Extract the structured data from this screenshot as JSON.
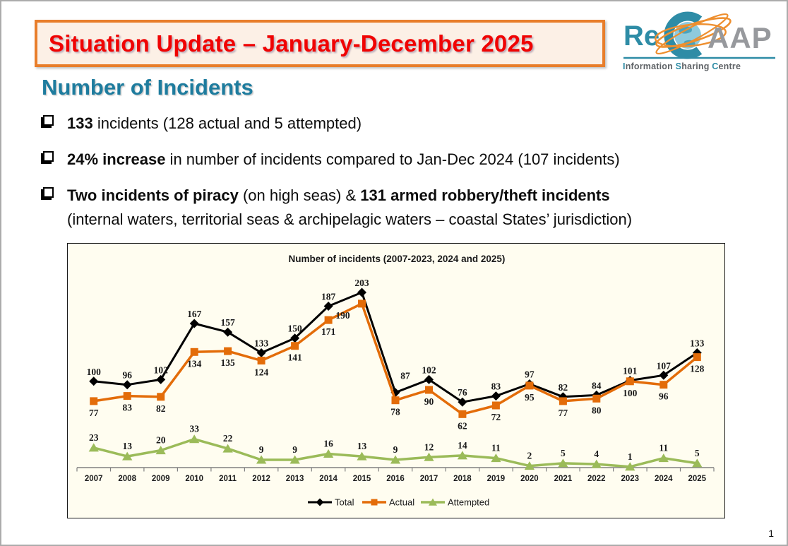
{
  "slide": {
    "page_number": "1",
    "banner": {
      "title": "Situation Update – January-December 2025"
    },
    "logo": {
      "re": "Re",
      "c": "C",
      "aap": "AAP",
      "tagline": [
        {
          "initial": "I",
          "rest": "nformation"
        },
        {
          "initial": "S",
          "rest": "haring"
        },
        {
          "initial": "C",
          "rest": "entre"
        }
      ],
      "teal": "#2e8ca6",
      "gray": "#97999d",
      "orange": "#ee8f2f"
    },
    "heading": "Number of Incidents",
    "bullets": [
      {
        "segments": [
          {
            "text": "133",
            "bold": true
          },
          {
            "text": " incidents (128 actual and 5 attempted)",
            "bold": false
          }
        ]
      },
      {
        "segments": [
          {
            "text": "24% increase",
            "bold": true
          },
          {
            "text": " in number of incidents compared to Jan-Dec 2024 (107 incidents)",
            "bold": false
          }
        ]
      },
      {
        "segments": [
          {
            "text": "Two incidents of piracy",
            "bold": true
          },
          {
            "text": " (on high seas) & ",
            "bold": false
          },
          {
            "text": "131 armed robbery/theft incidents",
            "bold": true
          },
          {
            "break": true
          },
          {
            "text": "(internal waters, territorial seas & archipelagic waters – coastal States’ jurisdiction)",
            "bold": false
          }
        ]
      }
    ]
  },
  "chart_data": {
    "type": "line",
    "title": "Number of incidents (2007-2023, 2024 and 2025)",
    "categories": [
      "2007",
      "2008",
      "2009",
      "2010",
      "2011",
      "2012",
      "2013",
      "2014",
      "2015",
      "2016",
      "2017",
      "2018",
      "2019",
      "2020",
      "2021",
      "2022",
      "2023",
      "2024",
      "2025"
    ],
    "series": [
      {
        "name": "Total",
        "color": "#000000",
        "marker": "diamond",
        "values": [
          100,
          96,
          102,
          167,
          157,
          133,
          150,
          187,
          203,
          87,
          102,
          76,
          83,
          97,
          82,
          84,
          101,
          107,
          133
        ]
      },
      {
        "name": "Actual",
        "color": "#e36c09",
        "marker": "square",
        "values": [
          77,
          83,
          82,
          134,
          135,
          124,
          141,
          171,
          190,
          78,
          90,
          62,
          72,
          95,
          77,
          80,
          100,
          96,
          128
        ]
      },
      {
        "name": "Attempted",
        "color": "#9bbb59",
        "marker": "triangle",
        "values": [
          23,
          13,
          20,
          33,
          22,
          9,
          9,
          16,
          13,
          9,
          12,
          14,
          11,
          2,
          5,
          4,
          1,
          11,
          5
        ]
      }
    ],
    "xlabel": "",
    "ylabel": "",
    "ylim": [
      0,
      210
    ],
    "grid": false,
    "legend_position": "bottom",
    "background": "#fffdf0",
    "axis_color": "#808080"
  }
}
